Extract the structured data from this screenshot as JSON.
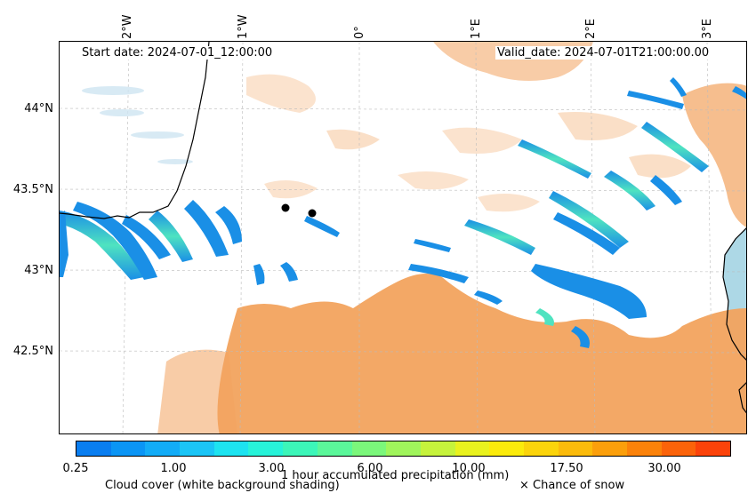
{
  "header": {
    "start_date": "Start date: 2024-07-01_12:00:00",
    "valid_date": "Valid_date: 2024-07-01T21:00:00.00"
  },
  "axes": {
    "lon_labels": [
      "2°W",
      "1°W",
      "0°",
      "1°E",
      "2°E",
      "3°E"
    ],
    "lat_labels": [
      "44°N",
      "43.5°N",
      "43°N",
      "42.5°N"
    ]
  },
  "markers": [
    {
      "name": "point-a"
    },
    {
      "name": "point-b"
    }
  ],
  "colorbar": {
    "title": "1 hour accumulated precipitation (mm)",
    "tick_labels": [
      "0.25",
      "1.00",
      "3.00",
      "6.00",
      "10.00",
      "17.50",
      "30.00"
    ],
    "colors": [
      "#0a7ef0",
      "#0b95f5",
      "#13acf7",
      "#1bc5f6",
      "#1de3f0",
      "#27f3d9",
      "#3cf6b9",
      "#5bf79a",
      "#7bf77b",
      "#a0f55c",
      "#c6f33c",
      "#e9f21e",
      "#fbeb0b",
      "#fbd40b",
      "#fbbb0b",
      "#fb9f0b",
      "#fb820a",
      "#fb630a",
      "#fb430a"
    ]
  },
  "legend": {
    "cloud_cover": "Cloud cover (white background shading)",
    "snow": "× Chance of snow"
  },
  "colors": {
    "cloud_shading": "#f2a35e",
    "precip_low": "#1a8fe6",
    "precip_mid": "#4fe3c0",
    "sea": "#add8e6",
    "coastline": "#000000"
  }
}
